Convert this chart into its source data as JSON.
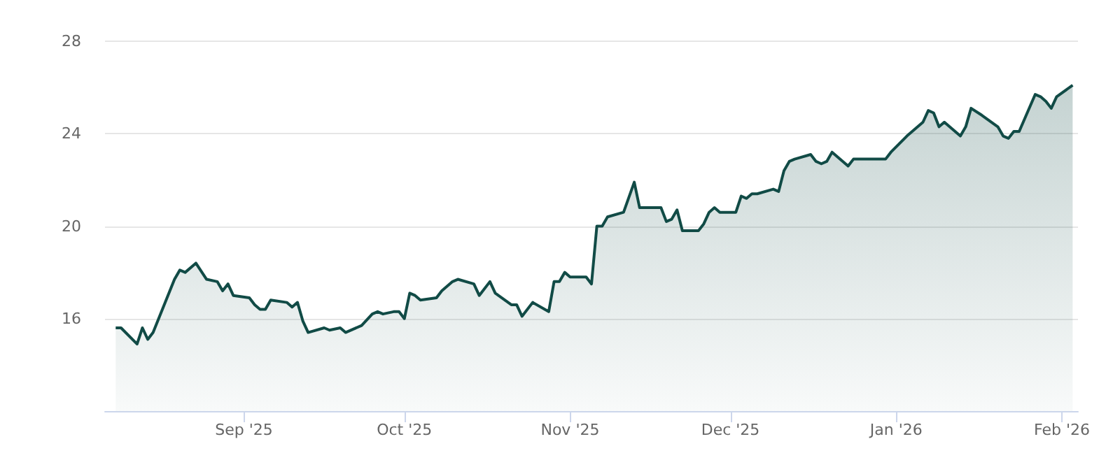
{
  "chart_data": {
    "type": "area",
    "x": [
      "2025-08-08",
      "2025-08-09",
      "2025-08-12",
      "2025-08-13",
      "2025-08-14",
      "2025-08-15",
      "2025-08-19",
      "2025-08-20",
      "2025-08-21",
      "2025-08-23",
      "2025-08-25",
      "2025-08-27",
      "2025-08-28",
      "2025-08-29",
      "2025-08-30",
      "2025-09-02",
      "2025-09-03",
      "2025-09-04",
      "2025-09-05",
      "2025-09-06",
      "2025-09-09",
      "2025-09-10",
      "2025-09-11",
      "2025-09-12",
      "2025-09-13",
      "2025-09-16",
      "2025-09-17",
      "2025-09-19",
      "2025-09-20",
      "2025-09-23",
      "2025-09-25",
      "2025-09-26",
      "2025-09-27",
      "2025-09-29",
      "2025-09-30",
      "2025-10-01",
      "2025-10-02",
      "2025-10-03",
      "2025-10-04",
      "2025-10-07",
      "2025-10-08",
      "2025-10-10",
      "2025-10-11",
      "2025-10-14",
      "2025-10-15",
      "2025-10-17",
      "2025-10-18",
      "2025-10-21",
      "2025-10-22",
      "2025-10-23",
      "2025-10-25",
      "2025-10-28",
      "2025-10-29",
      "2025-10-30",
      "2025-10-31",
      "2025-11-01",
      "2025-11-04",
      "2025-11-05",
      "2025-11-06",
      "2025-11-07",
      "2025-11-08",
      "2025-11-11",
      "2025-11-13",
      "2025-11-14",
      "2025-11-18",
      "2025-11-19",
      "2025-11-20",
      "2025-11-21",
      "2025-11-22",
      "2025-11-25",
      "2025-11-26",
      "2025-11-27",
      "2025-11-28",
      "2025-11-29",
      "2025-12-02",
      "2025-12-03",
      "2025-12-04",
      "2025-12-05",
      "2025-12-06",
      "2025-12-09",
      "2025-12-10",
      "2025-12-11",
      "2025-12-12",
      "2025-12-13",
      "2025-12-16",
      "2025-12-17",
      "2025-12-18",
      "2025-12-19",
      "2025-12-20",
      "2025-12-23",
      "2025-12-24",
      "2025-12-30",
      "2025-12-31",
      "2026-01-03",
      "2026-01-06",
      "2026-01-07",
      "2026-01-08",
      "2026-01-09",
      "2026-01-10",
      "2026-01-13",
      "2026-01-14",
      "2026-01-15",
      "2026-01-17",
      "2026-01-20",
      "2026-01-21",
      "2026-01-22",
      "2026-01-23",
      "2026-01-24",
      "2026-01-27",
      "2026-01-28",
      "2026-01-29",
      "2026-01-30",
      "2026-01-31",
      "2026-02-03"
    ],
    "series": [
      {
        "color": "#114b46",
        "values": [
          15.6,
          15.6,
          14.9,
          15.6,
          15.1,
          15.4,
          17.7,
          18.1,
          18.0,
          18.4,
          17.7,
          17.6,
          17.2,
          17.5,
          17.0,
          16.9,
          16.6,
          16.4,
          16.4,
          16.8,
          16.7,
          16.5,
          16.7,
          15.9,
          15.4,
          15.6,
          15.5,
          15.6,
          15.4,
          15.7,
          16.2,
          16.3,
          16.2,
          16.3,
          16.3,
          16.0,
          17.1,
          17.0,
          16.8,
          16.9,
          17.2,
          17.6,
          17.7,
          17.5,
          17.0,
          17.6,
          17.1,
          16.6,
          16.6,
          16.1,
          16.7,
          16.3,
          17.6,
          17.6,
          18.0,
          17.8,
          17.8,
          17.5,
          20.0,
          20.0,
          20.4,
          20.6,
          21.9,
          20.8,
          20.8,
          20.2,
          20.3,
          20.7,
          19.8,
          19.8,
          20.1,
          20.6,
          20.8,
          20.6,
          20.6,
          21.3,
          21.2,
          21.4,
          21.4,
          21.6,
          21.5,
          22.4,
          22.8,
          22.9,
          23.1,
          22.8,
          22.7,
          22.8,
          23.2,
          22.6,
          22.9,
          22.9,
          23.2,
          23.9,
          24.5,
          25.0,
          24.9,
          24.3,
          24.5,
          23.9,
          24.3,
          25.1,
          24.8,
          24.3,
          23.9,
          23.8,
          24.1,
          24.1,
          25.7,
          25.6,
          25.4,
          25.1,
          25.6,
          26.1
        ]
      }
    ],
    "xlim": [
      "2025-08-06",
      "2026-02-04"
    ],
    "xticks": [
      {
        "value": "2025-09-01",
        "label": "Sep '25"
      },
      {
        "value": "2025-10-01",
        "label": "Oct '25"
      },
      {
        "value": "2025-11-01",
        "label": "Nov '25"
      },
      {
        "value": "2025-12-01",
        "label": "Dec '25"
      },
      {
        "value": "2026-01-01",
        "label": "Jan '26"
      },
      {
        "value": "2026-02-01",
        "label": "Feb '26"
      }
    ],
    "ylim": [
      12,
      28
    ],
    "yticks": [
      16,
      20,
      24,
      28
    ],
    "grid": "y",
    "marker": "none",
    "line_style": "solid"
  }
}
